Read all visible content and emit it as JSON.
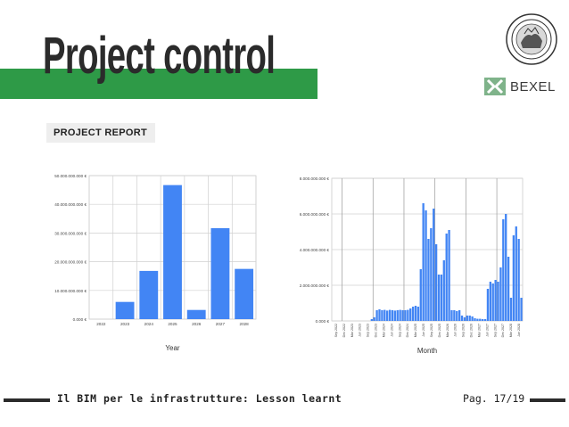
{
  "slide": {
    "title": "Project control",
    "section_label": "PROJECT REPORT",
    "footer_text": "Il BIM per le infrastrutture: Lesson learnt",
    "page_label": "Pag. 17/19",
    "logo_text": "BEXEL",
    "accent_color": "#2e9a47",
    "bar_color": "#4285f4"
  },
  "chart_data": [
    {
      "type": "bar",
      "xlabel": "Year",
      "categories": [
        "2022",
        "2023",
        "2024",
        "2025",
        "2026",
        "2027",
        "2028"
      ],
      "values": [
        0,
        6000000000,
        16800000000,
        46700000000,
        3200000000,
        31700000000,
        17500000000
      ],
      "ylim": [
        0,
        50000000000
      ],
      "y_ticks": [
        "0.000 €",
        "10.000.000.000 €",
        "20.000.000.000 €",
        "30.000.000.000 €",
        "40.000.000.000 €",
        "50.000.000.000 €"
      ],
      "grid": true
    },
    {
      "type": "bar",
      "xlabel": "Month",
      "ylim": [
        0,
        8000000000
      ],
      "y_ticks": [
        "0.000 €",
        "2.000.000.000 €",
        "4.000.000.000 €",
        "6.000.000.000 €",
        "8.000.000.000 €"
      ],
      "x_ticks": [
        "Sep 2022",
        "Dec 2022",
        "Mar 2023",
        "Jun 2023",
        "Sep 2023",
        "Dec 2023",
        "Mar 2024",
        "Jun 2024",
        "Sep 2024",
        "Dec 2024",
        "Mar 2025",
        "Jun 2025",
        "Sep 2025",
        "Dec 2025",
        "Mar 2026",
        "Jun 2026",
        "Sep 2026",
        "Dec 2026",
        "Mar 2027",
        "Jun 2027",
        "Sep 2027",
        "Dec 2027",
        "Mar 2028",
        "Jun 2028"
      ],
      "values": [
        0,
        0,
        0,
        0,
        0,
        0,
        0,
        0,
        0,
        0,
        0,
        0,
        0,
        0,
        0,
        100000000,
        200000000,
        600000000,
        650000000,
        600000000,
        620000000,
        580000000,
        620000000,
        600000000,
        580000000,
        600000000,
        620000000,
        600000000,
        600000000,
        620000000,
        700000000,
        800000000,
        850000000,
        800000000,
        2900000000,
        6600000000,
        6200000000,
        4600000000,
        5200000000,
        6300000000,
        4300000000,
        2600000000,
        2600000000,
        3400000000,
        4900000000,
        5100000000,
        600000000,
        600000000,
        550000000,
        600000000,
        300000000,
        200000000,
        300000000,
        300000000,
        250000000,
        150000000,
        120000000,
        120000000,
        100000000,
        100000000,
        1800000000,
        2200000000,
        2100000000,
        2300000000,
        2200000000,
        3000000000,
        5700000000,
        6000000000,
        3600000000,
        1300000000,
        4800000000,
        5300000000,
        4600000000,
        1300000000
      ],
      "grid": true
    }
  ]
}
